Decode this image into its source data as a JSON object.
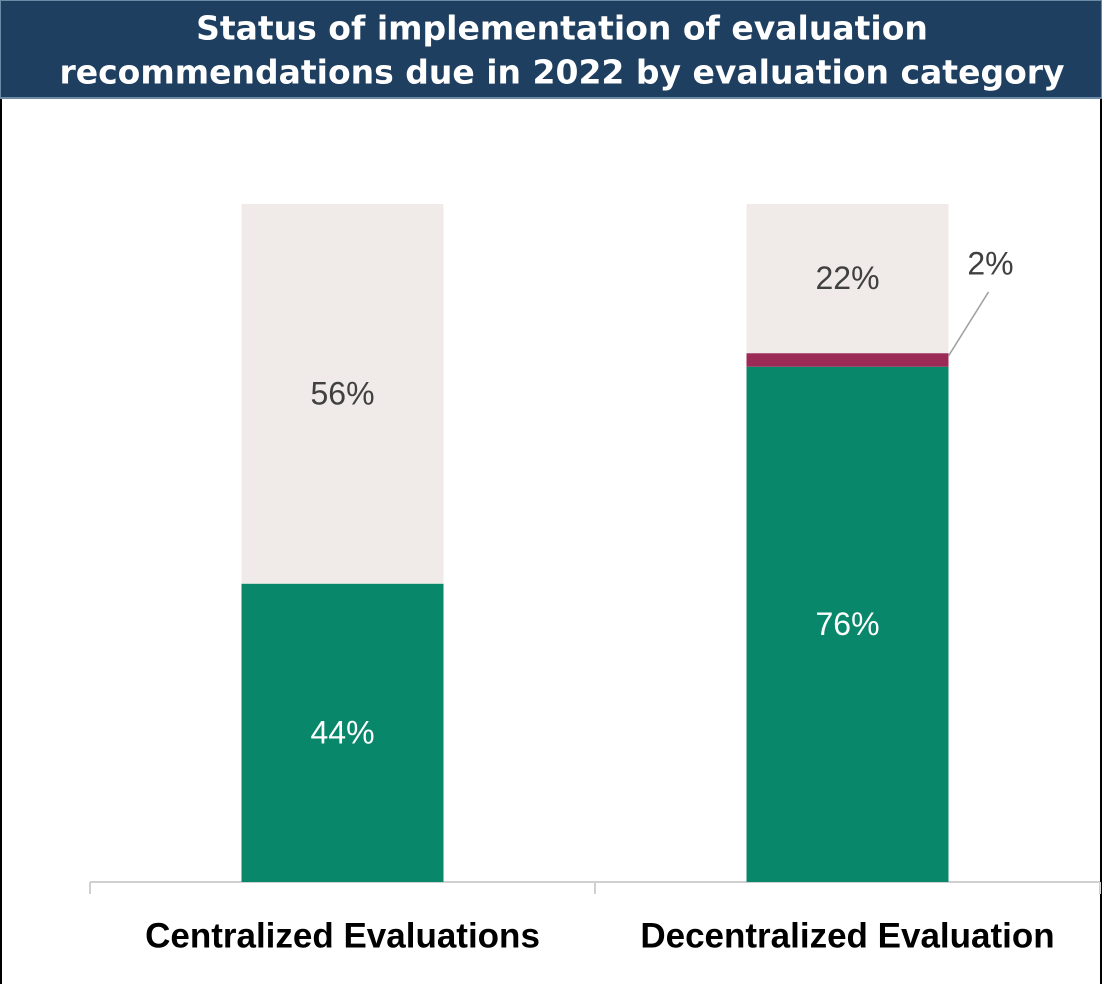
{
  "chart_data": {
    "type": "bar",
    "stacked": true,
    "title": [
      "Status of implementation of evaluation",
      "recommendations due in 2022 by evaluation category"
    ],
    "categories": [
      "Centralized Evaluations",
      "Decentralized Evaluation"
    ],
    "series": [
      {
        "color": "#08876a",
        "values": [
          44,
          76
        ],
        "value_labels": [
          "44%",
          "76%"
        ]
      },
      {
        "color": "#9b2a56",
        "values": [
          null,
          2
        ],
        "value_labels": [
          null,
          "2%"
        ]
      },
      {
        "color": "#f0ebe8",
        "values": [
          56,
          22
        ],
        "value_labels": [
          "56%",
          "22%"
        ]
      }
    ],
    "ylim": [
      0,
      100
    ]
  }
}
